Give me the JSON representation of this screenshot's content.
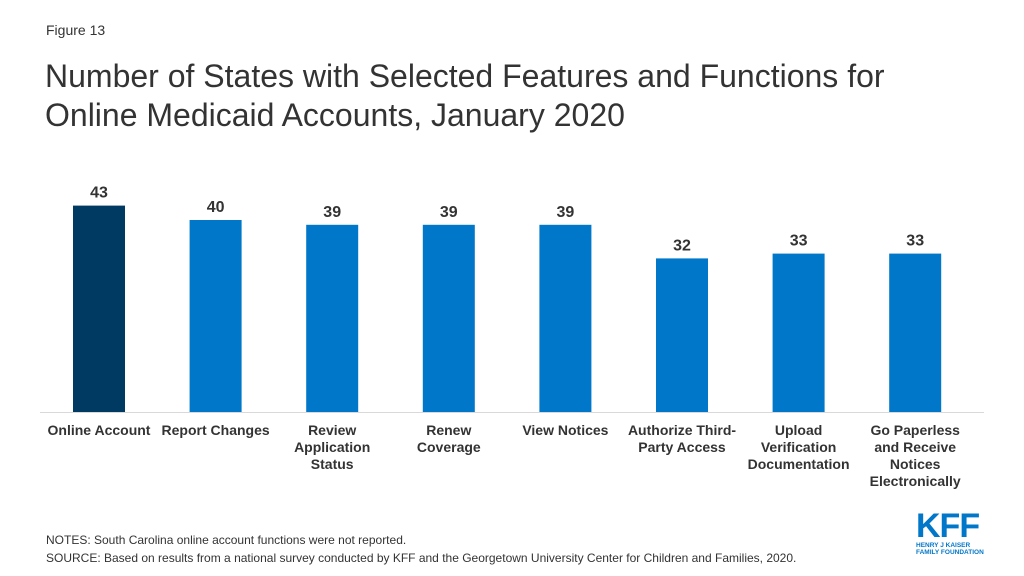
{
  "figure_label": "Figure 13",
  "title": "Number of States with Selected Features and Functions for Online Medicaid Accounts, January 2020",
  "notes": "NOTES: South Carolina online account functions were not reported.",
  "source": "SOURCE: Based on results from a national survey conducted by KFF and the Georgetown University Center for Children and Families, 2020.",
  "logo": {
    "main": "KFF",
    "line1": "HENRY J KAISER",
    "line2": "FAMILY FOUNDATION"
  },
  "colors": {
    "highlight": "#003a63",
    "bar": "#0077c8",
    "axis": "#d9d9d9"
  },
  "chart_data": {
    "type": "bar",
    "categories": [
      "Online Account",
      "Report Changes",
      "Review Application Status",
      "Renew Coverage",
      "View Notices",
      "Authorize Third-Party Access",
      "Upload Verification Documentation",
      "Go Paperless and Receive Notices Electronically"
    ],
    "category_lines": [
      [
        "Online Account"
      ],
      [
        "Report Changes"
      ],
      [
        "Review",
        "Application",
        "Status"
      ],
      [
        "Renew",
        "Coverage"
      ],
      [
        "View Notices"
      ],
      [
        "Authorize Third-",
        "Party Access"
      ],
      [
        "Upload",
        "Verification",
        "Documentation"
      ],
      [
        "Go Paperless",
        "and Receive",
        "Notices",
        "Electronically"
      ]
    ],
    "values": [
      43,
      40,
      39,
      39,
      39,
      32,
      33,
      33
    ],
    "highlight_index": 0,
    "ylim": [
      0,
      50
    ],
    "grid": false,
    "legend": "none",
    "data_labels": true
  }
}
